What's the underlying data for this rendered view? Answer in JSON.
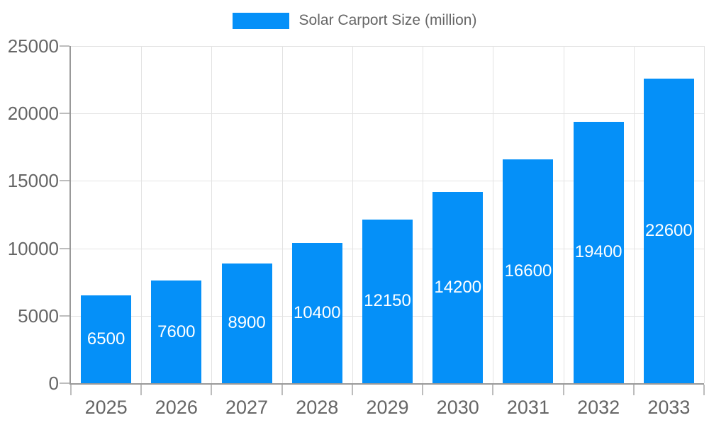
{
  "chart_data": {
    "type": "bar",
    "title": "",
    "legend": {
      "label": "Solar Carport Size (million)",
      "position": "top"
    },
    "categories": [
      "2025",
      "2026",
      "2027",
      "2028",
      "2029",
      "2030",
      "2031",
      "2032",
      "2033"
    ],
    "series": [
      {
        "name": "Solar Carport Size (million)",
        "values": [
          6500,
          7600,
          8900,
          10400,
          12150,
          14200,
          16600,
          19400,
          22600
        ]
      }
    ],
    "data_labels_shown": true,
    "xlabel": "",
    "ylabel": "",
    "ylim": [
      0,
      25000
    ],
    "yticks": [
      0,
      5000,
      10000,
      15000,
      20000,
      25000
    ],
    "grid": "both",
    "colors": {
      "bar": "#0590f8",
      "grid": "#e3e3e3",
      "axis": "#999999",
      "tick": "#bdbdbd",
      "axis_label": "#666666",
      "legend_text": "#666666",
      "value_label": "#ffffff",
      "background": "#ffffff"
    }
  }
}
